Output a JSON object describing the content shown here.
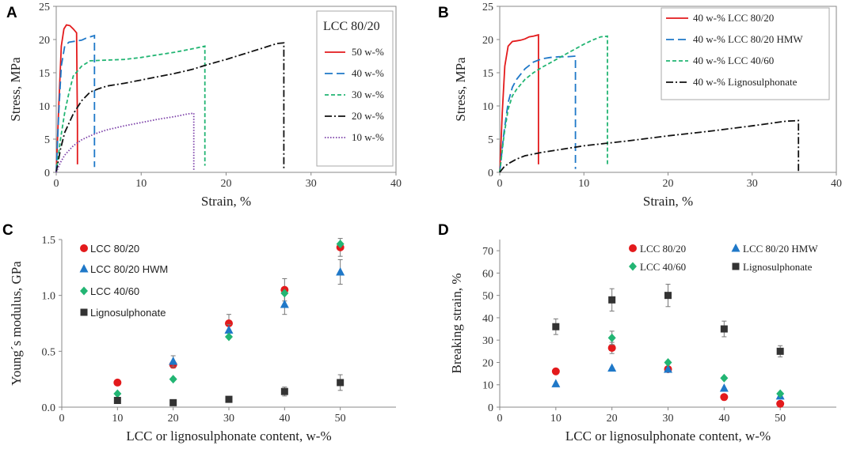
{
  "chart_data": [
    {
      "panel": "A",
      "type": "line",
      "xlabel": "Strain, %",
      "ylabel": "Stress, MPa",
      "xlim": [
        0,
        40
      ],
      "ylim": [
        0,
        25
      ],
      "xticks": [
        0,
        10,
        20,
        30,
        40
      ],
      "yticks": [
        0,
        5,
        10,
        15,
        20,
        25
      ],
      "legend_title": "LCC 80/20",
      "series": [
        {
          "name": "50 w-%",
          "color": "#e31a1c",
          "dash": "solid",
          "x": [
            0,
            0.3,
            0.6,
            0.9,
            1.2,
            1.6,
            2.0,
            2.4,
            2.5,
            2.5
          ],
          "y": [
            0,
            10,
            19,
            21.6,
            22.2,
            22.1,
            21.6,
            21.0,
            7.0,
            1.2
          ]
        },
        {
          "name": "40 w-%",
          "color": "#1f78c8",
          "dash": "long",
          "x": [
            0,
            0.3,
            0.6,
            1.0,
            1.5,
            2.0,
            2.5,
            3.0,
            3.5,
            4.0,
            4.5,
            4.5
          ],
          "y": [
            0,
            9,
            16,
            19.0,
            19.6,
            19.7,
            19.8,
            19.9,
            20.2,
            20.4,
            20.6,
            0.8
          ]
        },
        {
          "name": "30 w-%",
          "color": "#22b573",
          "dash": "short",
          "x": [
            0,
            0.5,
            1.0,
            1.5,
            2.0,
            3.0,
            4.0,
            6.0,
            8.0,
            10.0,
            12.0,
            14.0,
            16.0,
            17.5,
            17.5
          ],
          "y": [
            0,
            5,
            9,
            12,
            14.5,
            16.0,
            16.8,
            16.9,
            17.0,
            17.3,
            17.7,
            18.1,
            18.6,
            19.0,
            1.0
          ]
        },
        {
          "name": "20 w-%",
          "color": "#111111",
          "dash": "dashdot",
          "x": [
            0,
            0.5,
            1.0,
            2.0,
            3.0,
            4.0,
            5.0,
            6.0,
            8.0,
            10.0,
            12.0,
            14.0,
            16.0,
            18.0,
            20.0,
            22.0,
            24.0,
            26.0,
            26.8,
            26.8
          ],
          "y": [
            0,
            3.5,
            6.0,
            8.8,
            10.8,
            12.1,
            12.6,
            13.0,
            13.4,
            13.9,
            14.4,
            14.9,
            15.5,
            16.3,
            17.0,
            17.8,
            18.6,
            19.4,
            19.5,
            0.5
          ]
        },
        {
          "name": "10 w-%",
          "color": "#7b3fa8",
          "dash": "dot",
          "x": [
            0,
            0.5,
            1.0,
            2.0,
            3.0,
            4.0,
            5.0,
            6.0,
            8.0,
            10.0,
            12.0,
            14.0,
            15.5,
            16.2,
            16.2
          ],
          "y": [
            0,
            1.5,
            2.6,
            4.0,
            4.9,
            5.5,
            6.0,
            6.4,
            7.0,
            7.5,
            8.0,
            8.4,
            8.8,
            8.9,
            0.3
          ]
        }
      ]
    },
    {
      "panel": "B",
      "type": "line",
      "xlabel": "Strain,  %",
      "ylabel": "Stress, MPa",
      "xlim": [
        0,
        40
      ],
      "ylim": [
        0,
        25
      ],
      "xticks": [
        0,
        10,
        20,
        30,
        40
      ],
      "yticks": [
        0,
        5,
        10,
        15,
        20,
        25
      ],
      "series": [
        {
          "name": "40 w-% LCC 80/20",
          "color": "#e31a1c",
          "dash": "solid",
          "x": [
            0,
            0.3,
            0.6,
            1.0,
            1.5,
            2.0,
            2.5,
            3.0,
            3.5,
            4.0,
            4.6,
            4.6
          ],
          "y": [
            0,
            9,
            16,
            19.0,
            19.7,
            19.8,
            19.9,
            20.1,
            20.4,
            20.5,
            20.7,
            1.2
          ]
        },
        {
          "name": "40 w-% LCC 80/20 HMW",
          "color": "#1f78c8",
          "dash": "long",
          "x": [
            0,
            0.5,
            1.0,
            1.5,
            2.0,
            3.0,
            4.0,
            5.0,
            6.0,
            7.0,
            8.0,
            9.0,
            9.0
          ],
          "y": [
            0,
            6,
            10.5,
            12.8,
            14.0,
            15.6,
            16.6,
            17.1,
            17.3,
            17.4,
            17.4,
            17.5,
            0.5
          ]
        },
        {
          "name": "40 w-% LCC 40/60",
          "color": "#22b573",
          "dash": "short",
          "x": [
            0,
            0.5,
            1.0,
            1.5,
            2.0,
            3.0,
            4.0,
            5.0,
            6.0,
            7.0,
            8.0,
            9.0,
            10.0,
            11.0,
            12.0,
            12.8,
            12.8
          ],
          "y": [
            0,
            5.5,
            9.5,
            11.5,
            12.5,
            14.0,
            15.0,
            15.8,
            16.5,
            17.2,
            17.9,
            18.6,
            19.3,
            19.9,
            20.4,
            20.5,
            1.0
          ]
        },
        {
          "name": "40 w-% Lignosulphonate",
          "color": "#111111",
          "dash": "dashdot",
          "x": [
            0,
            0.5,
            1.0,
            2.0,
            3.0,
            5.0,
            10.0,
            15.0,
            20.0,
            25.0,
            30.0,
            34.0,
            35.5,
            35.5
          ],
          "y": [
            0,
            0.8,
            1.3,
            2.0,
            2.5,
            3.0,
            4.0,
            4.7,
            5.5,
            6.2,
            7.0,
            7.7,
            7.8,
            0.2
          ]
        }
      ]
    },
    {
      "panel": "C",
      "type": "scatter",
      "xlabel": "LCC or lignosulphonate content, w-%",
      "ylabel": "Young´s modulus, GPa",
      "xlim": [
        0,
        60
      ],
      "ylim": [
        0,
        1.5
      ],
      "xticks": [
        0,
        10,
        20,
        30,
        40,
        50
      ],
      "yticks": [
        0.0,
        0.5,
        1.0,
        1.5
      ],
      "ytick_labels": [
        "0.0",
        "0.5",
        "1.0",
        "1.5"
      ],
      "series": [
        {
          "name": "LCC 80/20",
          "marker": "circle",
          "color": "#e31a1c",
          "x": [
            10,
            20,
            30,
            40,
            50
          ],
          "y": [
            0.22,
            0.38,
            0.75,
            1.05,
            1.43
          ],
          "err": [
            0,
            0.03,
            0.08,
            0.1,
            0.08
          ]
        },
        {
          "name": "LCC 80/20 HWM",
          "marker": "triangle",
          "color": "#1f78c8",
          "x": [
            20,
            30,
            40,
            50
          ],
          "y": [
            0.41,
            0.69,
            0.92,
            1.21
          ],
          "err": [
            0.05,
            0.05,
            0.09,
            0.11
          ]
        },
        {
          "name": "LCC 40/60",
          "marker": "diamond",
          "color": "#22b573",
          "x": [
            10,
            20,
            30,
            40,
            50
          ],
          "y": [
            0.12,
            0.25,
            0.63,
            1.02,
            1.46
          ],
          "err": [
            0,
            0,
            0,
            0,
            0
          ]
        },
        {
          "name": "Lignosulphonate",
          "marker": "square",
          "color": "#333333",
          "x": [
            10,
            20,
            30,
            40,
            50
          ],
          "y": [
            0.06,
            0.04,
            0.07,
            0.14,
            0.22
          ],
          "err": [
            0,
            0,
            0,
            0.04,
            0.07
          ]
        }
      ]
    },
    {
      "panel": "D",
      "type": "scatter",
      "xlabel": "LCC or lignosulphonate content, w-%",
      "ylabel": "Breaking strain, %",
      "xlim": [
        0,
        60
      ],
      "ylim": [
        0,
        75
      ],
      "xticks": [
        0,
        10,
        20,
        30,
        40,
        50
      ],
      "yticks": [
        0,
        10,
        20,
        30,
        40,
        50,
        60,
        70
      ],
      "series": [
        {
          "name": "LCC 80/20",
          "marker": "circle",
          "color": "#e31a1c",
          "x": [
            10,
            20,
            30,
            40,
            50
          ],
          "y": [
            16,
            26.5,
            17,
            4.5,
            1.5
          ],
          "err": [
            0,
            2.5,
            0,
            0,
            0
          ]
        },
        {
          "name": "LCC 80/20 HMW",
          "marker": "triangle",
          "color": "#1f78c8",
          "x": [
            10,
            20,
            30,
            40,
            50
          ],
          "y": [
            10.5,
            17.5,
            17,
            8.5,
            5
          ],
          "err": [
            0,
            0,
            0,
            0,
            0
          ]
        },
        {
          "name": "LCC 40/60",
          "marker": "diamond",
          "color": "#22b573",
          "x": [
            20,
            30,
            40,
            50
          ],
          "y": [
            31,
            20,
            13,
            6
          ],
          "err": [
            3,
            0,
            0,
            0
          ]
        },
        {
          "name": "Lignosulphonate",
          "marker": "square",
          "color": "#333333",
          "x": [
            10,
            20,
            30,
            40,
            50
          ],
          "y": [
            36,
            48,
            50,
            35,
            25
          ],
          "err": [
            3.5,
            5,
            5,
            3.5,
            2.5
          ]
        }
      ]
    }
  ]
}
